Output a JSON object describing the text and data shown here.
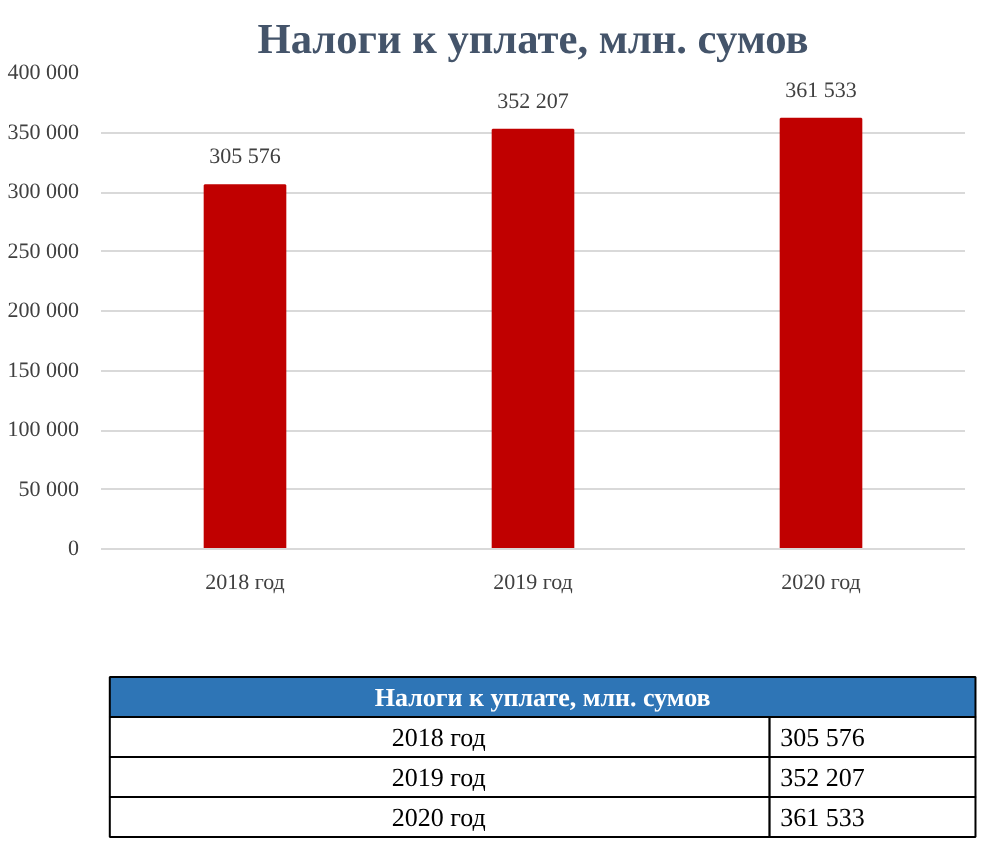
{
  "chart_data": {
    "type": "bar",
    "title": "Налоги к уплате, млн. сумов",
    "categories": [
      "2018 год",
      "2019 год",
      "2020 год"
    ],
    "values": [
      305576,
      352207,
      361533
    ],
    "value_labels": [
      "305 576",
      "352 207",
      "361 533"
    ],
    "color": "#c00000",
    "ylim": [
      0,
      400000
    ],
    "yticks": [
      0,
      {
        "value": 50000,
        "label": "50 000"
      },
      {
        "value": 100000,
        "label": "100 000"
      },
      {
        "value": 150000,
        "label": "150 000"
      },
      {
        "value": 200000,
        "label": "200 000"
      },
      {
        "value": 250000,
        "label": "250 000"
      },
      {
        "value": 300000,
        "label": "300 000"
      },
      {
        "value": 350000,
        "label": "350 000"
      },
      {
        "value": 400000,
        "label": "400 000"
      }
    ],
    "grid": "y",
    "annotations": [
      "Налоги к уплате, млн. сумов"
    ]
  }
}
